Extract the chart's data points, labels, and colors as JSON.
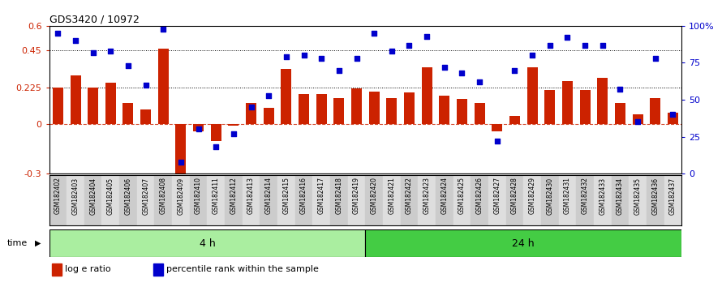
{
  "title": "GDS3420 / 10972",
  "samples": [
    "GSM182402",
    "GSM182403",
    "GSM182404",
    "GSM182405",
    "GSM182406",
    "GSM182407",
    "GSM182408",
    "GSM182409",
    "GSM182410",
    "GSM182411",
    "GSM182412",
    "GSM182413",
    "GSM182414",
    "GSM182415",
    "GSM182416",
    "GSM182417",
    "GSM182418",
    "GSM182419",
    "GSM182420",
    "GSM182421",
    "GSM182422",
    "GSM182423",
    "GSM182424",
    "GSM182425",
    "GSM182426",
    "GSM182427",
    "GSM182428",
    "GSM182429",
    "GSM182430",
    "GSM182431",
    "GSM182432",
    "GSM182433",
    "GSM182434",
    "GSM182435",
    "GSM182436",
    "GSM182437"
  ],
  "log_ratio": [
    0.225,
    0.3,
    0.225,
    0.255,
    0.13,
    0.09,
    0.46,
    -0.3,
    -0.04,
    -0.1,
    -0.01,
    0.13,
    0.1,
    0.34,
    0.185,
    0.185,
    0.16,
    0.22,
    0.2,
    0.16,
    0.195,
    0.35,
    0.175,
    0.155,
    0.13,
    -0.04,
    0.05,
    0.35,
    0.21,
    0.265,
    0.21,
    0.285,
    0.13,
    0.06,
    0.16,
    0.07
  ],
  "percentile": [
    95,
    90,
    82,
    83,
    73,
    60,
    98,
    8,
    30,
    18,
    27,
    45,
    53,
    79,
    80,
    78,
    70,
    78,
    95,
    83,
    87,
    93,
    72,
    68,
    62,
    22,
    70,
    80,
    87,
    92,
    87,
    87,
    57,
    35,
    78,
    40
  ],
  "time_groups": [
    {
      "label": "4 h",
      "start": 0,
      "end": 18
    },
    {
      "label": "24 h",
      "start": 18,
      "end": 36
    }
  ],
  "ylim_left": [
    -0.3,
    0.6
  ],
  "ylim_right": [
    0,
    100
  ],
  "yticks_left": [
    -0.3,
    0.0,
    0.225,
    0.45,
    0.6
  ],
  "ytick_labels_left": [
    "-0.3",
    "0",
    "0.225",
    "0.45",
    "0.6"
  ],
  "yticks_right": [
    0,
    25,
    50,
    75,
    100
  ],
  "ytick_labels_right": [
    "0",
    "25",
    "50",
    "75",
    "100%"
  ],
  "hlines": [
    0.225,
    0.45
  ],
  "bar_color": "#cc2200",
  "dot_color": "#0000cc",
  "zero_line_color": "#cc2200",
  "bar_width": 0.6,
  "group_colors": [
    "#aaeea0",
    "#44cc44"
  ],
  "label_bg_color": "#d8d8d8",
  "legend": [
    "log e ratio",
    "percentile rank within the sample"
  ],
  "n_4h": 18,
  "n_total": 36
}
